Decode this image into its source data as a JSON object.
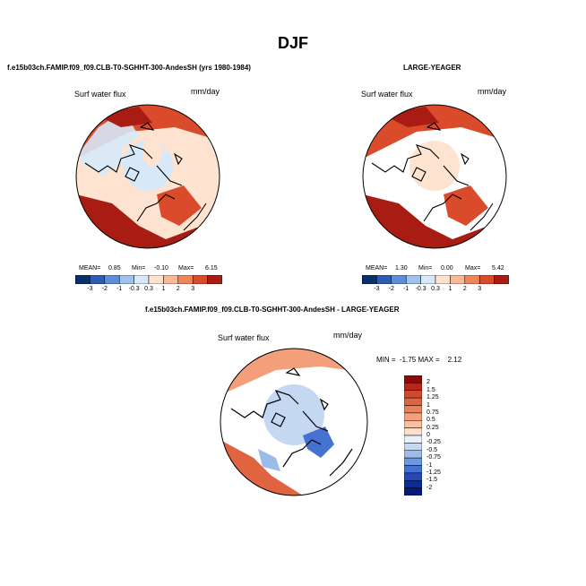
{
  "figure": {
    "title": "DJF",
    "left_header": "f.e15b03ch.FAMIP.f09_f09.CLB-T0-SGHHT-300-AndesSH (yrs 1980-1984)",
    "right_header": "LARGE-YEAGER",
    "diff_header": "f.e15b03ch.FAMIP.f09_f09.CLB-T0-SGHHT-300-AndesSH - LARGE-YEAGER"
  },
  "chart_data": [
    {
      "type": "heatmap",
      "projection": "north polar stereographic",
      "variable": "Surf water flux",
      "units": "mm/day",
      "stats": {
        "mean_label": "MEAN=",
        "mean": "0.85",
        "min_label": "Min=",
        "min": "-0.10",
        "max_label": "Max=",
        "max": "6.15"
      },
      "levels": [
        "-3",
        "-2",
        "-1",
        "-0.3",
        "0.3",
        "1",
        "2",
        "3"
      ],
      "colors": [
        "#08306b",
        "#2a5cb8",
        "#5f8ed8",
        "#9ec2ec",
        "#d7e8f8",
        "#fde3d0",
        "#f9b892",
        "#f0845a",
        "#d94b2b",
        "#a81c13"
      ]
    },
    {
      "type": "heatmap",
      "projection": "north polar stereographic",
      "variable": "Surf water flux",
      "units": "mm/day",
      "stats": {
        "mean_label": "MEAN=",
        "mean": "1.30",
        "min_label": "Min=",
        "min": "0.00",
        "max_label": "Max=",
        "max": "5.42"
      },
      "levels": [
        "-3",
        "-2",
        "-1",
        "-0.3",
        "0.3",
        "1",
        "2",
        "3"
      ],
      "colors": [
        "#08306b",
        "#2a5cb8",
        "#5f8ed8",
        "#9ec2ec",
        "#d7e8f8",
        "#fde3d0",
        "#f9b892",
        "#f0845a",
        "#d94b2b",
        "#a81c13"
      ]
    },
    {
      "type": "heatmap",
      "projection": "north polar stereographic",
      "variable": "Surf water flux",
      "units": "mm/day",
      "stats_text": "MIN =  -1.75 MAX =    2.12",
      "levels": [
        "2",
        "1.5",
        "1.25",
        "1",
        "0.75",
        "0.5",
        "0.25",
        "0",
        "-0.25",
        "-0.5",
        "-0.75",
        "-1",
        "-1.25",
        "-1.5",
        "-2"
      ],
      "colors": [
        "#8b0a0a",
        "#b5271a",
        "#cf4a2c",
        "#e06440",
        "#ec8158",
        "#f3a07a",
        "#f8c0a0",
        "#fde0cc",
        "#e8f0fa",
        "#c4d8f2",
        "#9bbce8",
        "#6d98dc",
        "#4372d0",
        "#2448b8",
        "#0c2a9a",
        "#061a7a"
      ]
    }
  ]
}
